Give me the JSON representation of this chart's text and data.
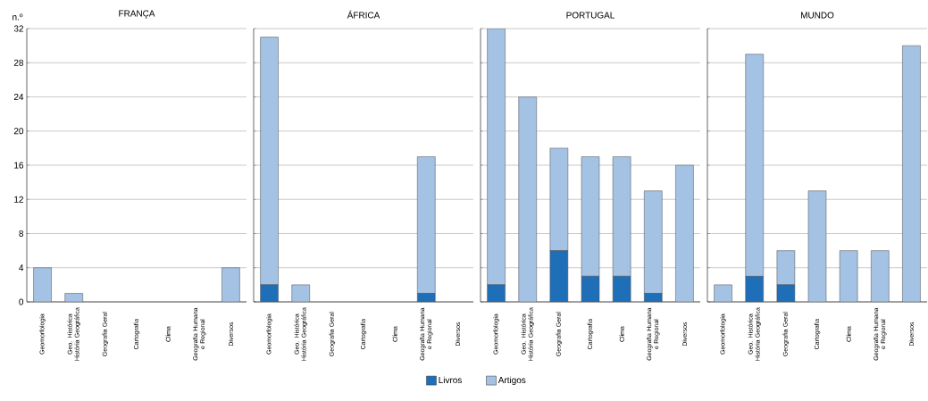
{
  "chart_data": [
    {
      "type": "bar",
      "stacked": true,
      "title": "FRANÇA",
      "ylabel": "n.º",
      "categories": [
        "Geomorfologia",
        "Geo. Histórica História Geográfica",
        "Geografia Geral",
        "Cartografia",
        "Clima",
        "Geografia Humana e Regional",
        "Diversos"
      ],
      "series": [
        {
          "name": "Livros",
          "color": "#1f6fb8",
          "values": [
            0,
            0,
            0,
            0,
            0,
            0,
            0
          ]
        },
        {
          "name": "Artigos",
          "color": "#a4c2e4",
          "values": [
            4,
            1,
            0,
            0,
            0,
            0,
            4
          ]
        }
      ],
      "ylim": [
        0,
        32
      ],
      "yticks": [
        0,
        4,
        8,
        12,
        16,
        20,
        24,
        28,
        32
      ],
      "grid": "y",
      "legend": "bottom"
    },
    {
      "type": "bar",
      "stacked": true,
      "title": "ÁFRICA",
      "categories": [
        "Geomorfologia",
        "Geo. Histórica História Geográfica",
        "Geografia Geral",
        "Cartografia",
        "Clima",
        "Geografia Humana e Regional",
        "Diversos"
      ],
      "series": [
        {
          "color": "#1f6fb8",
          "values": [
            2,
            0,
            0,
            0,
            0,
            1,
            0
          ]
        },
        {
          "color": "#a4c2e4",
          "values": [
            29,
            2,
            0,
            0,
            0,
            16,
            0
          ]
        }
      ],
      "ylim": [
        0,
        32
      ],
      "yticks": [
        0,
        4,
        8,
        12,
        16,
        20,
        24,
        28,
        32
      ],
      "grid": "y",
      "tick_labels": "x"
    },
    {
      "type": "bar",
      "stacked": true,
      "title": "PORTUGAL",
      "categories": [
        "Geomorfologia",
        "Geo. Histórica História Geográfica",
        "Geografia Geral",
        "Cartografia",
        "Clima",
        "Geografia Humana e Regional",
        "Diversos"
      ],
      "series": [
        {
          "color": "#1f6fb8",
          "values": [
            2,
            0,
            6,
            3,
            3,
            1,
            0
          ]
        },
        {
          "color": "#a4c2e4",
          "values": [
            30,
            24,
            12,
            14,
            14,
            12,
            16
          ]
        }
      ],
      "ylim": [
        0,
        32
      ],
      "yticks": [
        0,
        4,
        8,
        12,
        16,
        20,
        24,
        28,
        32
      ],
      "grid": "y",
      "tick_labels": "x"
    },
    {
      "type": "bar",
      "stacked": true,
      "title": "MUNDO",
      "categories": [
        "Geomorfologia",
        "Geo. Histórica História Geográfica",
        "Geografia Geral",
        "Cartografia",
        "Clima",
        "Geografia Humana e Regional",
        "Diversos"
      ],
      "series": [
        {
          "color": "#1f6fb8",
          "values": [
            0,
            3,
            2,
            0,
            0,
            0,
            0
          ]
        },
        {
          "color": "#a4c2e4",
          "values": [
            2,
            26,
            4,
            13,
            6,
            6,
            30
          ]
        }
      ],
      "ylim": [
        0,
        32
      ],
      "yticks": [
        0,
        4,
        8,
        12,
        16,
        20,
        24,
        28,
        32
      ],
      "grid": "y",
      "tick_labels": "x"
    }
  ]
}
